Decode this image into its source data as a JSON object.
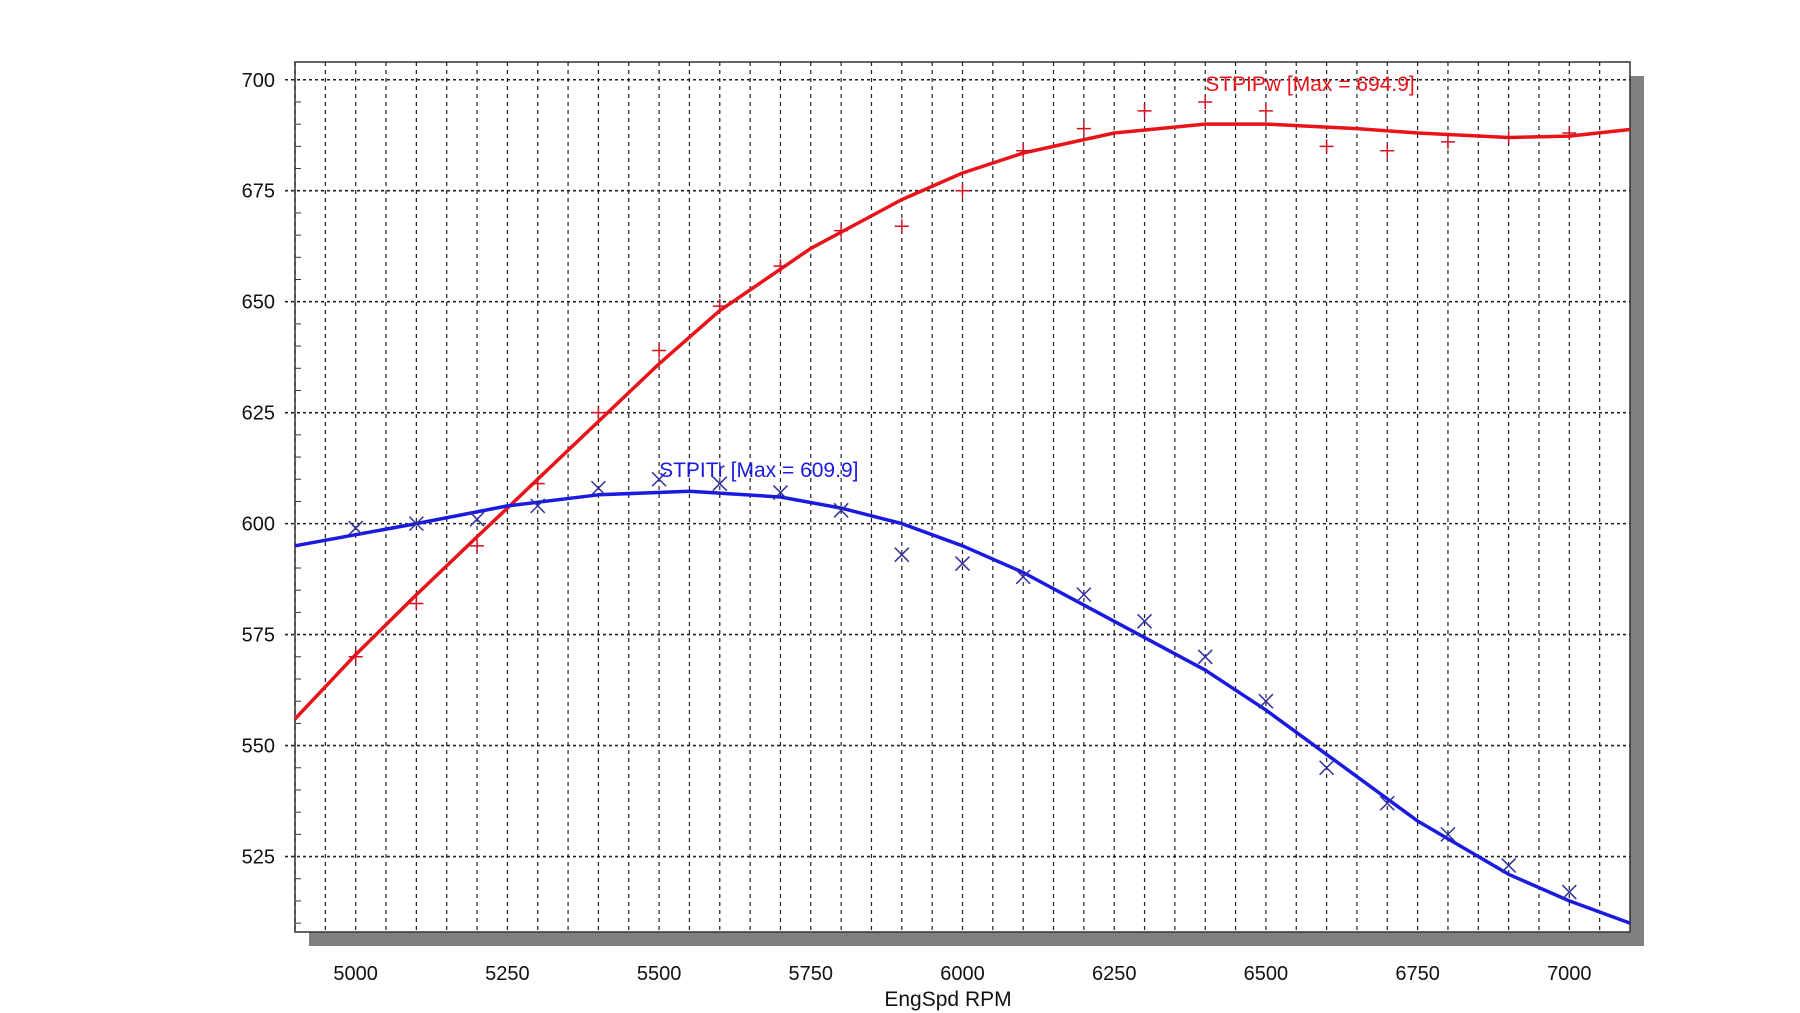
{
  "chart_data": {
    "type": "scatter",
    "title": "",
    "xlabel": "EngSpd RPM",
    "ylabel": "",
    "xlim": [
      4900,
      7100
    ],
    "ylim": [
      508,
      704
    ],
    "x_ticks": [
      5000,
      5250,
      5500,
      5750,
      6000,
      6250,
      6500,
      6750,
      7000
    ],
    "y_ticks": [
      525,
      550,
      575,
      600,
      625,
      650,
      675,
      700
    ],
    "grid": true,
    "series": [
      {
        "name": "STPIPw [Max = 694.9]",
        "color": "#e8141a",
        "marker": "plus",
        "points": [
          [
            5000,
            570
          ],
          [
            5100,
            582
          ],
          [
            5200,
            595
          ],
          [
            5300,
            609
          ],
          [
            5400,
            625
          ],
          [
            5500,
            639
          ],
          [
            5600,
            649
          ],
          [
            5700,
            658
          ],
          [
            5800,
            666
          ],
          [
            5900,
            667
          ],
          [
            6000,
            675
          ],
          [
            6100,
            684
          ],
          [
            6200,
            689
          ],
          [
            6300,
            693
          ],
          [
            6400,
            695
          ],
          [
            6500,
            693
          ],
          [
            6600,
            685
          ],
          [
            6700,
            684
          ],
          [
            6800,
            686
          ],
          [
            6900,
            687
          ],
          [
            7000,
            688
          ]
        ],
        "fit": [
          [
            4900,
            556
          ],
          [
            5000,
            570.5
          ],
          [
            5100,
            584
          ],
          [
            5200,
            597
          ],
          [
            5250,
            603.5
          ],
          [
            5300,
            610
          ],
          [
            5400,
            623
          ],
          [
            5500,
            636
          ],
          [
            5600,
            648
          ],
          [
            5750,
            662
          ],
          [
            5900,
            673
          ],
          [
            6000,
            679
          ],
          [
            6100,
            683.5
          ],
          [
            6250,
            688
          ],
          [
            6400,
            690
          ],
          [
            6500,
            690
          ],
          [
            6650,
            689
          ],
          [
            6750,
            688
          ],
          [
            6900,
            687
          ],
          [
            7000,
            687.3
          ],
          [
            7100,
            688.8
          ]
        ]
      },
      {
        "name": "STPITr [Max = 609.9]",
        "color": "#1a1ae0",
        "marker": "x",
        "points": [
          [
            5000,
            599
          ],
          [
            5100,
            600
          ],
          [
            5200,
            601
          ],
          [
            5300,
            604
          ],
          [
            5400,
            608
          ],
          [
            5500,
            610
          ],
          [
            5600,
            609
          ],
          [
            5700,
            607
          ],
          [
            5800,
            603
          ],
          [
            5900,
            593
          ],
          [
            6000,
            591
          ],
          [
            6100,
            588
          ],
          [
            6200,
            584
          ],
          [
            6300,
            578
          ],
          [
            6400,
            570
          ],
          [
            6500,
            560
          ],
          [
            6600,
            545
          ],
          [
            6700,
            537
          ],
          [
            6800,
            530
          ],
          [
            6900,
            523
          ],
          [
            7000,
            517
          ]
        ],
        "fit": [
          [
            4900,
            595
          ],
          [
            5000,
            597.5
          ],
          [
            5100,
            600
          ],
          [
            5250,
            604
          ],
          [
            5400,
            606.5
          ],
          [
            5550,
            607.3
          ],
          [
            5700,
            606
          ],
          [
            5800,
            603.5
          ],
          [
            5900,
            600
          ],
          [
            6000,
            595
          ],
          [
            6100,
            589
          ],
          [
            6250,
            578
          ],
          [
            6400,
            567
          ],
          [
            6500,
            558
          ],
          [
            6600,
            548
          ],
          [
            6750,
            533
          ],
          [
            6900,
            521
          ],
          [
            7000,
            515
          ],
          [
            7100,
            510
          ]
        ]
      }
    ]
  }
}
